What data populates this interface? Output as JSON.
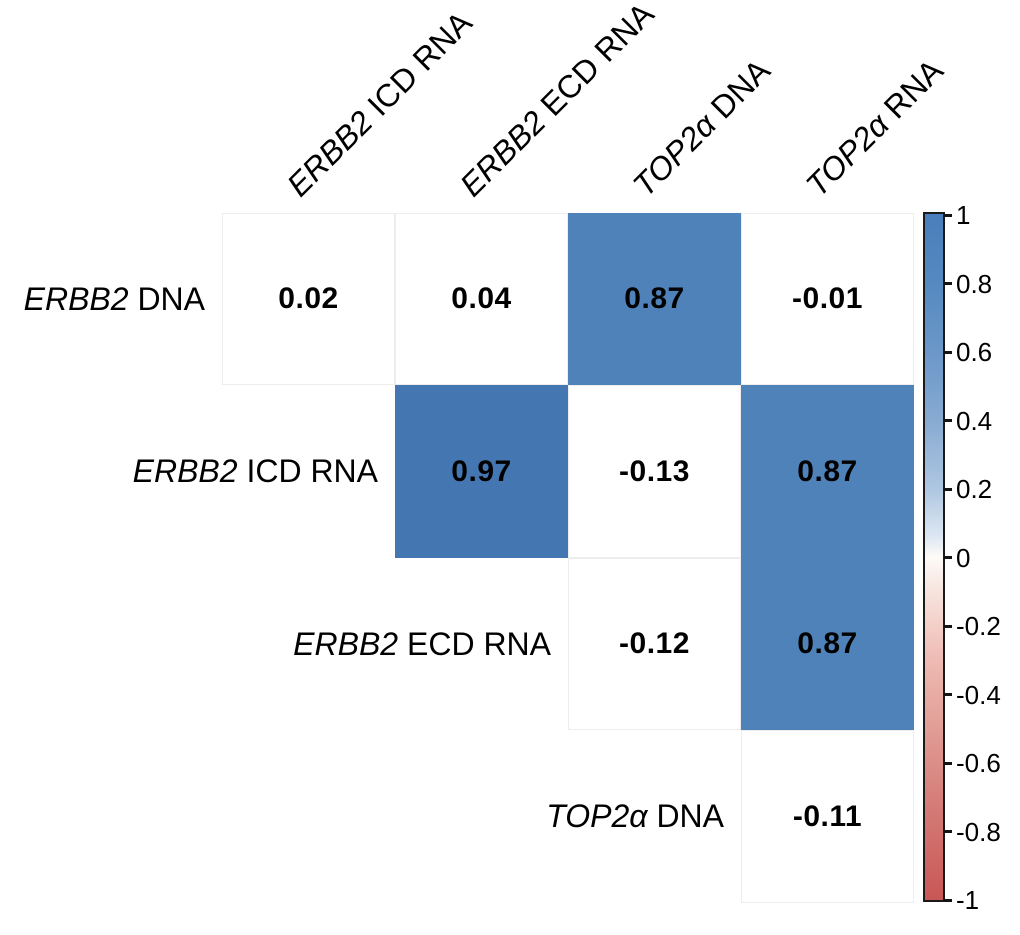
{
  "chart_data": {
    "type": "heatmap",
    "subtype": "pairwise-correlation-matrix-upper-triangle",
    "title": "",
    "xlabel": "",
    "ylabel": "",
    "variables": [
      "ERBB2 DNA",
      "ERBB2 ICD RNA",
      "ERBB2 ECD RNA",
      "TOP2α DNA",
      "TOP2α RNA"
    ],
    "row_labels": [
      {
        "gene": "ERBB2",
        "suffix": "DNA"
      },
      {
        "gene": "ERBB2",
        "suffix": "ICD RNA"
      },
      {
        "gene": "ERBB2",
        "suffix": "ECD RNA"
      },
      {
        "gene": "TOP2α",
        "suffix": "DNA"
      }
    ],
    "col_labels": [
      {
        "gene": "ERBB2",
        "suffix": "ICD RNA"
      },
      {
        "gene": "ERBB2",
        "suffix": "ECD RNA"
      },
      {
        "gene": "TOP2α",
        "suffix": "DNA"
      },
      {
        "gene": "TOP2α",
        "suffix": "RNA"
      }
    ],
    "cells": [
      {
        "row": 0,
        "col": 0,
        "pair": "ERBB2 DNA vs ERBB2 ICD RNA",
        "value": "0.02",
        "filled": false
      },
      {
        "row": 0,
        "col": 1,
        "pair": "ERBB2 DNA vs ERBB2 ECD RNA",
        "value": "0.04",
        "filled": false
      },
      {
        "row": 0,
        "col": 2,
        "pair": "ERBB2 DNA vs TOP2α DNA",
        "value": "0.87",
        "filled": true,
        "fill": "#4e82b8"
      },
      {
        "row": 0,
        "col": 3,
        "pair": "ERBB2 DNA vs TOP2α RNA",
        "value": "-0.01",
        "filled": false
      },
      {
        "row": 1,
        "col": 1,
        "pair": "ERBB2 ICD RNA vs ERBB2 ECD RNA",
        "value": "0.97",
        "filled": true,
        "fill": "#4477b2"
      },
      {
        "row": 1,
        "col": 2,
        "pair": "ERBB2 ICD RNA vs TOP2α DNA",
        "value": "-0.13",
        "filled": false
      },
      {
        "row": 1,
        "col": 3,
        "pair": "ERBB2 ICD RNA vs TOP2α RNA",
        "value": "0.87",
        "filled": true,
        "fill": "#4e82b8"
      },
      {
        "row": 2,
        "col": 2,
        "pair": "ERBB2 ECD RNA vs TOP2α DNA",
        "value": "-0.12",
        "filled": false
      },
      {
        "row": 2,
        "col": 3,
        "pair": "ERBB2 ECD RNA vs TOP2α RNA",
        "value": "0.87",
        "filled": true,
        "fill": "#4e82b8"
      },
      {
        "row": 3,
        "col": 3,
        "pair": "TOP2α DNA vs TOP2α RNA",
        "value": "-0.11",
        "filled": false
      }
    ],
    "cell_text_color": "#000000",
    "empty_cell_border_color": "#eeecec",
    "colorbar": {
      "min": -1,
      "max": 1,
      "ticks": [
        "1",
        "0.8",
        "0.6",
        "0.4",
        "0.2",
        "0",
        "-0.2",
        "-0.4",
        "-0.6",
        "-0.8",
        "-1"
      ],
      "border_color": "#1a1a1a",
      "gradient": [
        {
          "pos": 0,
          "color": "#4a7eba"
        },
        {
          "pos": 10,
          "color": "#5589c0"
        },
        {
          "pos": 20,
          "color": "#6b97c8"
        },
        {
          "pos": 30,
          "color": "#87aad2"
        },
        {
          "pos": 40,
          "color": "#aec6e1"
        },
        {
          "pos": 47,
          "color": "#dde7f2"
        },
        {
          "pos": 50,
          "color": "#fdfbf8"
        },
        {
          "pos": 55,
          "color": "#f7e4de"
        },
        {
          "pos": 65,
          "color": "#eebbb3"
        },
        {
          "pos": 75,
          "color": "#e19d96"
        },
        {
          "pos": 85,
          "color": "#d67f7a"
        },
        {
          "pos": 100,
          "color": "#c85755"
        }
      ]
    },
    "legend_position": "right",
    "grid": false
  }
}
